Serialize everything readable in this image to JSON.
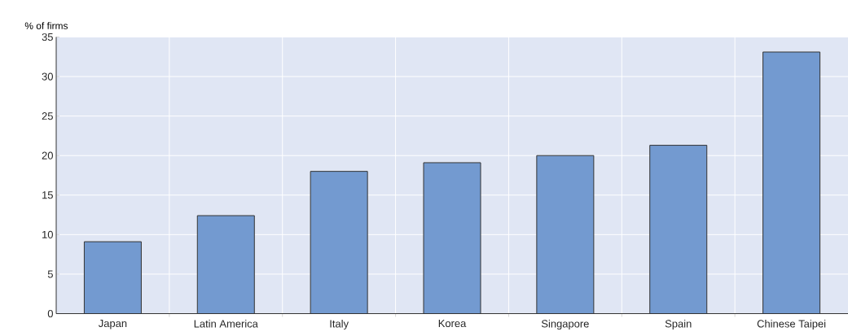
{
  "chart_data": {
    "type": "bar",
    "ylabel": "% of firms",
    "categories": [
      "Japan",
      "Latin America",
      "Italy",
      "Korea",
      "Singapore",
      "Spain",
      "Chinese Taipei"
    ],
    "values": [
      9.1,
      12.4,
      18.0,
      19.1,
      20.0,
      21.3,
      33.1
    ],
    "color": "#739ad0",
    "ylim": [
      0,
      35
    ],
    "yticks": [
      0,
      5,
      10,
      15,
      20,
      25,
      30,
      35
    ],
    "grid": true
  }
}
